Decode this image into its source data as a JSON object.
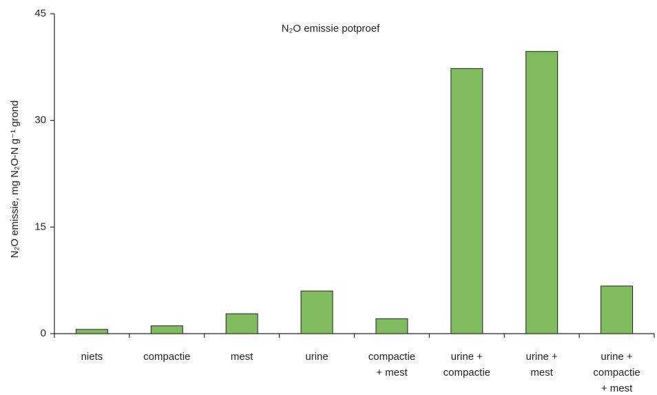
{
  "chart_data": {
    "type": "bar",
    "title": "N₂O emissie potproef",
    "y_label": "N₂O emissie, mg N₂O-N g⁻¹ grond",
    "categories": [
      [
        "niets"
      ],
      [
        "compactie"
      ],
      [
        "mest"
      ],
      [
        "urine"
      ],
      [
        "compactie",
        "+ mest"
      ],
      [
        "urine +",
        "compactie"
      ],
      [
        "urine +",
        "mest"
      ],
      [
        "urine +",
        "compactie",
        "+ mest"
      ]
    ],
    "values": [
      0.6,
      1.1,
      2.8,
      6.0,
      2.1,
      37.3,
      39.7,
      6.7
    ],
    "color": "#80bb60",
    "ylim": [
      0,
      45
    ],
    "yticks": [
      0,
      15,
      30,
      45
    ],
    "grid": false
  }
}
